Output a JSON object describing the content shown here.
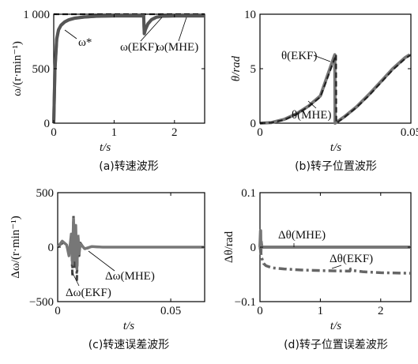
{
  "chart_data": [
    {
      "type": "line",
      "caption": "(a)转速波形",
      "xlabel": "t/s",
      "ylabel": "ω/(r·min⁻¹)",
      "xlim": [
        0,
        2.5
      ],
      "ylim": [
        0,
        1000
      ],
      "xticks": [
        "0",
        "1",
        "2"
      ],
      "yticks": [
        "0",
        "500",
        "1 000"
      ],
      "grid": false,
      "annotations": [
        "ω*",
        "ω(EKF)",
        "ω(MHE)"
      ],
      "series": [
        {
          "name": "ω*",
          "style": "dashed",
          "color": "#111111",
          "x": [
            0,
            0.02,
            1.5,
            1.5,
            2.5
          ],
          "y": [
            1000,
            1000,
            1000,
            1000,
            1000
          ]
        },
        {
          "name": "ω(EKF)",
          "style": "solid",
          "color": "#777777",
          "x": [
            0,
            0.02,
            0.05,
            0.08,
            0.12,
            0.18,
            0.25,
            0.35,
            0.5,
            0.7,
            1.0,
            1.49,
            1.5,
            1.52,
            1.56,
            1.62,
            1.7,
            1.8,
            2.0,
            2.5
          ],
          "y": [
            0,
            500,
            780,
            860,
            900,
            930,
            950,
            965,
            975,
            982,
            985,
            985,
            820,
            860,
            910,
            950,
            972,
            982,
            985,
            985
          ]
        },
        {
          "name": "ω(MHE)",
          "style": "solid",
          "color": "#555555",
          "x": [
            0,
            0.02,
            0.05,
            0.08,
            0.12,
            0.18,
            0.25,
            0.35,
            0.5,
            0.7,
            1.0,
            1.49,
            1.5,
            1.52,
            1.56,
            1.62,
            1.7,
            1.8,
            2.0,
            2.5
          ],
          "y": [
            0,
            480,
            770,
            855,
            898,
            928,
            948,
            963,
            974,
            981,
            985,
            985,
            825,
            862,
            912,
            951,
            973,
            982,
            985,
            985
          ]
        }
      ]
    },
    {
      "type": "line",
      "caption": "(b)转子位置波形",
      "xlabel": "t/s",
      "ylabel": "θ/rad",
      "xlim": [
        0,
        0.05
      ],
      "ylim": [
        0,
        10
      ],
      "xticks": [
        "0",
        "0.05"
      ],
      "yticks": [
        "0",
        "5",
        "10"
      ],
      "grid": false,
      "annotations": [
        "θ(EKF)",
        "θ(MHE)"
      ],
      "series": [
        {
          "name": "θ(EKF)",
          "style": "solid",
          "color": "#777777",
          "x": [
            0,
            0.0038,
            0.008,
            0.012,
            0.016,
            0.02,
            0.0248,
            0.0249,
            0.028,
            0.032,
            0.036,
            0.04,
            0.044,
            0.048,
            0.0496
          ],
          "y": [
            0,
            0.06,
            0.35,
            0.85,
            1.55,
            2.5,
            6.28,
            0,
            0.6,
            1.5,
            2.6,
            3.8,
            5.0,
            6.0,
            6.28
          ]
        },
        {
          "name": "θ(MHE)",
          "style": "dashed",
          "color": "#222222",
          "x": [
            0,
            0.0038,
            0.008,
            0.012,
            0.016,
            0.02,
            0.0252,
            0.0253,
            0.028,
            0.032,
            0.036,
            0.04,
            0.044,
            0.048,
            0.05
          ],
          "y": [
            0,
            0.05,
            0.3,
            0.8,
            1.5,
            2.4,
            6.28,
            0,
            0.55,
            1.45,
            2.5,
            3.7,
            4.9,
            5.9,
            6.28
          ]
        }
      ]
    },
    {
      "type": "line",
      "caption": "(c)转速误差波形",
      "xlabel": "t/s",
      "ylabel": "Δω/(r·min⁻¹)",
      "xlim": [
        0,
        0.065
      ],
      "ylim": [
        -500,
        500
      ],
      "xticks": [
        "0",
        "0.05"
      ],
      "yticks": [
        "−500",
        "0",
        "500"
      ],
      "grid": false,
      "annotations": [
        "Δω(MHE)",
        "Δω(EKF)"
      ],
      "series": [
        {
          "name": "Δω(EKF)",
          "style": "dash-dot",
          "color": "#444444",
          "x": [
            0,
            0.002,
            0.004,
            0.005,
            0.006,
            0.0065,
            0.007,
            0.0075,
            0.008,
            0.0085,
            0.009,
            0.0095,
            0.01,
            0.012,
            0.015,
            0.02,
            0.065
          ],
          "y": [
            0,
            40,
            10,
            -60,
            80,
            -250,
            300,
            -180,
            150,
            -300,
            120,
            -80,
            40,
            -20,
            5,
            0,
            0
          ]
        },
        {
          "name": "Δω(MHE)",
          "style": "solid",
          "color": "#777777",
          "x": [
            0,
            0.002,
            0.004,
            0.005,
            0.006,
            0.0065,
            0.007,
            0.0075,
            0.008,
            0.0085,
            0.009,
            0.0095,
            0.01,
            0.012,
            0.015,
            0.02,
            0.065
          ],
          "y": [
            0,
            55,
            20,
            -80,
            120,
            -150,
            260,
            -120,
            200,
            -200,
            100,
            -60,
            30,
            -15,
            5,
            0,
            0
          ]
        }
      ]
    },
    {
      "type": "line",
      "caption": "(d)转子位置误差波形",
      "xlabel": "t/s",
      "ylabel": "Δθ/rad",
      "xlim": [
        0,
        2.5
      ],
      "ylim": [
        -0.1,
        0.1
      ],
      "xticks": [
        "0",
        "1",
        "2"
      ],
      "yticks": [
        "−0.1",
        "0",
        "0.1"
      ],
      "grid": false,
      "annotations": [
        "Δθ(MHE)",
        "Δθ(EKF)"
      ],
      "series": [
        {
          "name": "Δθ(MHE)",
          "style": "solid",
          "color": "#777777",
          "x": [
            0,
            0.01,
            0.015,
            0.02,
            0.03,
            0.05,
            2.5
          ],
          "y": [
            0,
            0.03,
            -0.01,
            0.01,
            0,
            0,
            0
          ]
        },
        {
          "name": "Δθ(EKF)",
          "style": "dash-dot",
          "color": "#666666",
          "x": [
            0,
            0.03,
            0.06,
            0.1,
            0.2,
            0.4,
            0.7,
            1.0,
            1.49,
            1.5,
            1.55,
            1.7,
            2.0,
            2.5
          ],
          "y": [
            0,
            -0.02,
            -0.03,
            -0.034,
            -0.038,
            -0.04,
            -0.042,
            -0.043,
            -0.044,
            -0.04,
            -0.043,
            -0.045,
            -0.047,
            -0.048
          ]
        }
      ]
    }
  ]
}
